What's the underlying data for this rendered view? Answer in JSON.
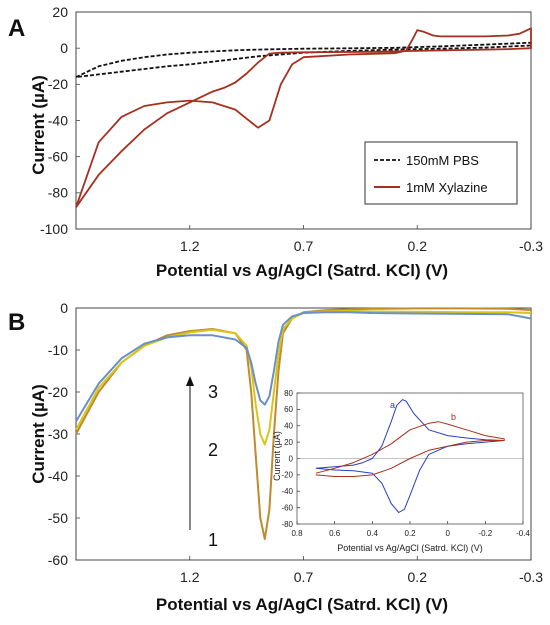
{
  "chart_data": [
    {
      "type": "line",
      "panel_label": "A",
      "xlabel": "Potential vs Ag/AgCl (Satrd. KCl) (V)",
      "ylabel": "Current (µA)",
      "xlim": [
        1.7,
        -0.3
      ],
      "ylim": [
        -100,
        20
      ],
      "x_ticks": [
        1.2,
        0.7,
        0.2,
        -0.3
      ],
      "x_tick_labels": [
        "1.2",
        "0.7",
        "0.2",
        "-0.3"
      ],
      "y_ticks": [
        20,
        0,
        -20,
        -40,
        -60,
        -80,
        -100
      ],
      "y_tick_labels": [
        "20",
        "0",
        "-20",
        "-40",
        "-60",
        "-80",
        "-100"
      ],
      "legend_position": "bottom-right",
      "series": [
        {
          "name": "150mM PBS",
          "style": "dashed",
          "color": "#111111",
          "x": [
            1.7,
            1.6,
            1.5,
            1.4,
            1.3,
            1.2,
            1.1,
            1.0,
            0.9,
            0.8,
            0.7,
            0.5,
            0.3,
            0.1,
            -0.1,
            -0.3,
            -0.3,
            -0.1,
            0.1,
            0.3,
            0.5,
            0.7,
            0.8,
            0.9,
            1.0,
            1.1,
            1.2,
            1.3,
            1.4,
            1.5,
            1.6,
            1.7
          ],
          "y": [
            -16,
            -10,
            -7,
            -5,
            -3.5,
            -2.5,
            -1.8,
            -1.2,
            -0.8,
            -0.5,
            -0.3,
            -0.1,
            0.2,
            1,
            2,
            3,
            1.5,
            0.3,
            -0.3,
            -0.8,
            -1.5,
            -2.5,
            -3.5,
            -4.5,
            -6,
            -7.5,
            -9,
            -10,
            -11.5,
            -13,
            -14.5,
            -16
          ]
        },
        {
          "name": "1mM Xylazine",
          "style": "solid",
          "color": "#a5301f",
          "x": [
            1.7,
            1.6,
            1.5,
            1.4,
            1.3,
            1.2,
            1.1,
            1.0,
            0.95,
            0.9,
            0.85,
            0.8,
            0.75,
            0.7,
            0.5,
            0.3,
            0.25,
            0.22,
            0.2,
            0.17,
            0.13,
            0.1,
            0.0,
            -0.1,
            -0.2,
            -0.25,
            -0.3,
            -0.3,
            -0.2,
            -0.1,
            0.0,
            0.2,
            0.4,
            0.6,
            0.7,
            0.8,
            0.85,
            0.9,
            0.95,
            1.0,
            1.05,
            1.1,
            1.2,
            1.3,
            1.4,
            1.5,
            1.6,
            1.7
          ],
          "y": [
            -88,
            -52,
            -38,
            -32,
            -30,
            -29,
            -30,
            -34,
            -39,
            -44,
            -40,
            -20,
            -9,
            -5,
            -3.5,
            -2.8,
            -1.5,
            5,
            10,
            9,
            7,
            6.5,
            6.5,
            6.5,
            7,
            8,
            11,
            0,
            -0.5,
            -0.8,
            -1,
            -1.5,
            -2,
            -2.2,
            -2.3,
            -2.5,
            -3,
            -8,
            -14,
            -19,
            -22,
            -24,
            -30,
            -36,
            -45,
            -57,
            -70,
            -88
          ]
        }
      ]
    },
    {
      "type": "line",
      "panel_label": "B",
      "xlabel": "Potential vs Ag/AgCl (Satrd. KCl) (V)",
      "ylabel": "Current (µA)",
      "xlim": [
        1.7,
        -0.3
      ],
      "ylim": [
        -60,
        0
      ],
      "x_ticks": [
        1.2,
        0.7,
        0.2,
        -0.3
      ],
      "x_tick_labels": [
        "1.2",
        "0.7",
        "0.2",
        "-0.3"
      ],
      "y_ticks": [
        0,
        -10,
        -20,
        -30,
        -40,
        -50,
        -60
      ],
      "y_tick_labels": [
        "0",
        "-10",
        "-20",
        "-30",
        "-40",
        "-50",
        "-60"
      ],
      "annotations": [
        "3",
        "2",
        "1"
      ],
      "series": [
        {
          "label": "1",
          "color": "#c08a30",
          "x": [
            1.7,
            1.6,
            1.5,
            1.4,
            1.3,
            1.2,
            1.1,
            1.0,
            0.95,
            0.93,
            0.91,
            0.89,
            0.87,
            0.85,
            0.83,
            0.81,
            0.79,
            0.75,
            0.7,
            0.6,
            0.5,
            0.4,
            0.2,
            0.0,
            -0.2,
            -0.3
          ],
          "y": [
            -30,
            -20,
            -13,
            -9,
            -6.5,
            -5.5,
            -5,
            -6,
            -10,
            -20,
            -35,
            -50,
            -55,
            -48,
            -30,
            -15,
            -6,
            -2.5,
            -1,
            -0.5,
            -0.3,
            -0.2,
            -0.1,
            -0.1,
            -0.2,
            -0.5
          ]
        },
        {
          "label": "2",
          "color": "#d8c515",
          "x": [
            1.7,
            1.6,
            1.5,
            1.4,
            1.3,
            1.2,
            1.1,
            1.0,
            0.95,
            0.93,
            0.91,
            0.89,
            0.87,
            0.85,
            0.83,
            0.81,
            0.79,
            0.75,
            0.7,
            0.6,
            0.5,
            0.4,
            0.2,
            0.0,
            -0.2,
            -0.3
          ],
          "y": [
            -29,
            -19,
            -13,
            -9,
            -7,
            -5.8,
            -5.2,
            -6,
            -9,
            -14,
            -23,
            -30,
            -32.5,
            -29,
            -20,
            -11,
            -5,
            -2.5,
            -1.2,
            -0.8,
            -0.7,
            -0.8,
            -0.9,
            -1.0,
            -1.0,
            -1.2
          ]
        },
        {
          "label": "3",
          "color": "#6b8fc7",
          "x": [
            1.7,
            1.6,
            1.5,
            1.4,
            1.3,
            1.2,
            1.1,
            1.0,
            0.95,
            0.93,
            0.91,
            0.89,
            0.87,
            0.85,
            0.83,
            0.81,
            0.79,
            0.75,
            0.7,
            0.6,
            0.5,
            0.4,
            0.2,
            0.0,
            -0.2,
            -0.3
          ],
          "y": [
            -27,
            -18,
            -12,
            -8.5,
            -7,
            -6.5,
            -6.5,
            -7.5,
            -9.5,
            -13,
            -18,
            -22,
            -23,
            -21,
            -15,
            -8,
            -4,
            -2,
            -1.2,
            -1,
            -1,
            -1.2,
            -1.3,
            -1.4,
            -1.5,
            -2.5
          ]
        }
      ]
    },
    {
      "type": "line",
      "inset_of": "B",
      "xlabel": "Potential vs Ag/AgCl (Satrd. KCl) (V)",
      "ylabel": "Current (µA)",
      "xlim": [
        0.8,
        -0.4
      ],
      "ylim": [
        -80,
        80
      ],
      "x_ticks": [
        0.8,
        0.6,
        0.4,
        0.2,
        0,
        -0.2,
        -0.4
      ],
      "x_tick_labels": [
        "0.8",
        "0.6",
        "0.4",
        "0.2",
        "0",
        "-0.2",
        "-0.4"
      ],
      "y_ticks": [
        80,
        60,
        40,
        20,
        0,
        -20,
        -40,
        -60,
        -80
      ],
      "y_tick_labels": [
        "80",
        "60",
        "40",
        "20",
        "0",
        "-20",
        "-40",
        "-60",
        "-80"
      ],
      "series": [
        {
          "label": "a",
          "color": "#2b3fc4",
          "x": [
            0.7,
            0.6,
            0.5,
            0.45,
            0.4,
            0.35,
            0.3,
            0.27,
            0.24,
            0.22,
            0.18,
            0.1,
            0.0,
            -0.1,
            -0.2,
            -0.3,
            -0.3,
            -0.2,
            -0.1,
            0.0,
            0.1,
            0.15,
            0.2,
            0.23,
            0.26,
            0.3,
            0.35,
            0.4,
            0.5,
            0.6,
            0.7
          ],
          "y": [
            -12,
            -10,
            -8,
            -5,
            0,
            15,
            45,
            65,
            72,
            70,
            55,
            35,
            28,
            25,
            23,
            22,
            22,
            20,
            18,
            15,
            5,
            -15,
            -45,
            -62,
            -66,
            -55,
            -30,
            -18,
            -15,
            -14,
            -12
          ]
        },
        {
          "label": "b",
          "color": "#a5301f",
          "x": [
            0.7,
            0.6,
            0.5,
            0.4,
            0.3,
            0.2,
            0.1,
            0.05,
            0.0,
            -0.1,
            -0.2,
            -0.3,
            -0.3,
            -0.2,
            -0.1,
            0.0,
            0.1,
            0.2,
            0.3,
            0.4,
            0.5,
            0.6,
            0.7
          ],
          "y": [
            -18,
            -12,
            -5,
            5,
            18,
            35,
            43,
            45,
            42,
            35,
            28,
            24,
            22,
            22,
            20,
            15,
            10,
            0,
            -12,
            -20,
            -22,
            -22,
            -20
          ]
        }
      ]
    }
  ],
  "panels": {
    "a": {
      "label": "A",
      "legend": [
        {
          "name": "150mM PBS",
          "style": "dashed",
          "color": "#111111"
        },
        {
          "name": "1mM Xylazine",
          "style": "solid",
          "color": "#a5301f"
        }
      ]
    },
    "b": {
      "label": "B",
      "annotations": [
        "3",
        "2",
        "1"
      ],
      "inset_curve_labels": [
        "a",
        "b"
      ]
    }
  }
}
